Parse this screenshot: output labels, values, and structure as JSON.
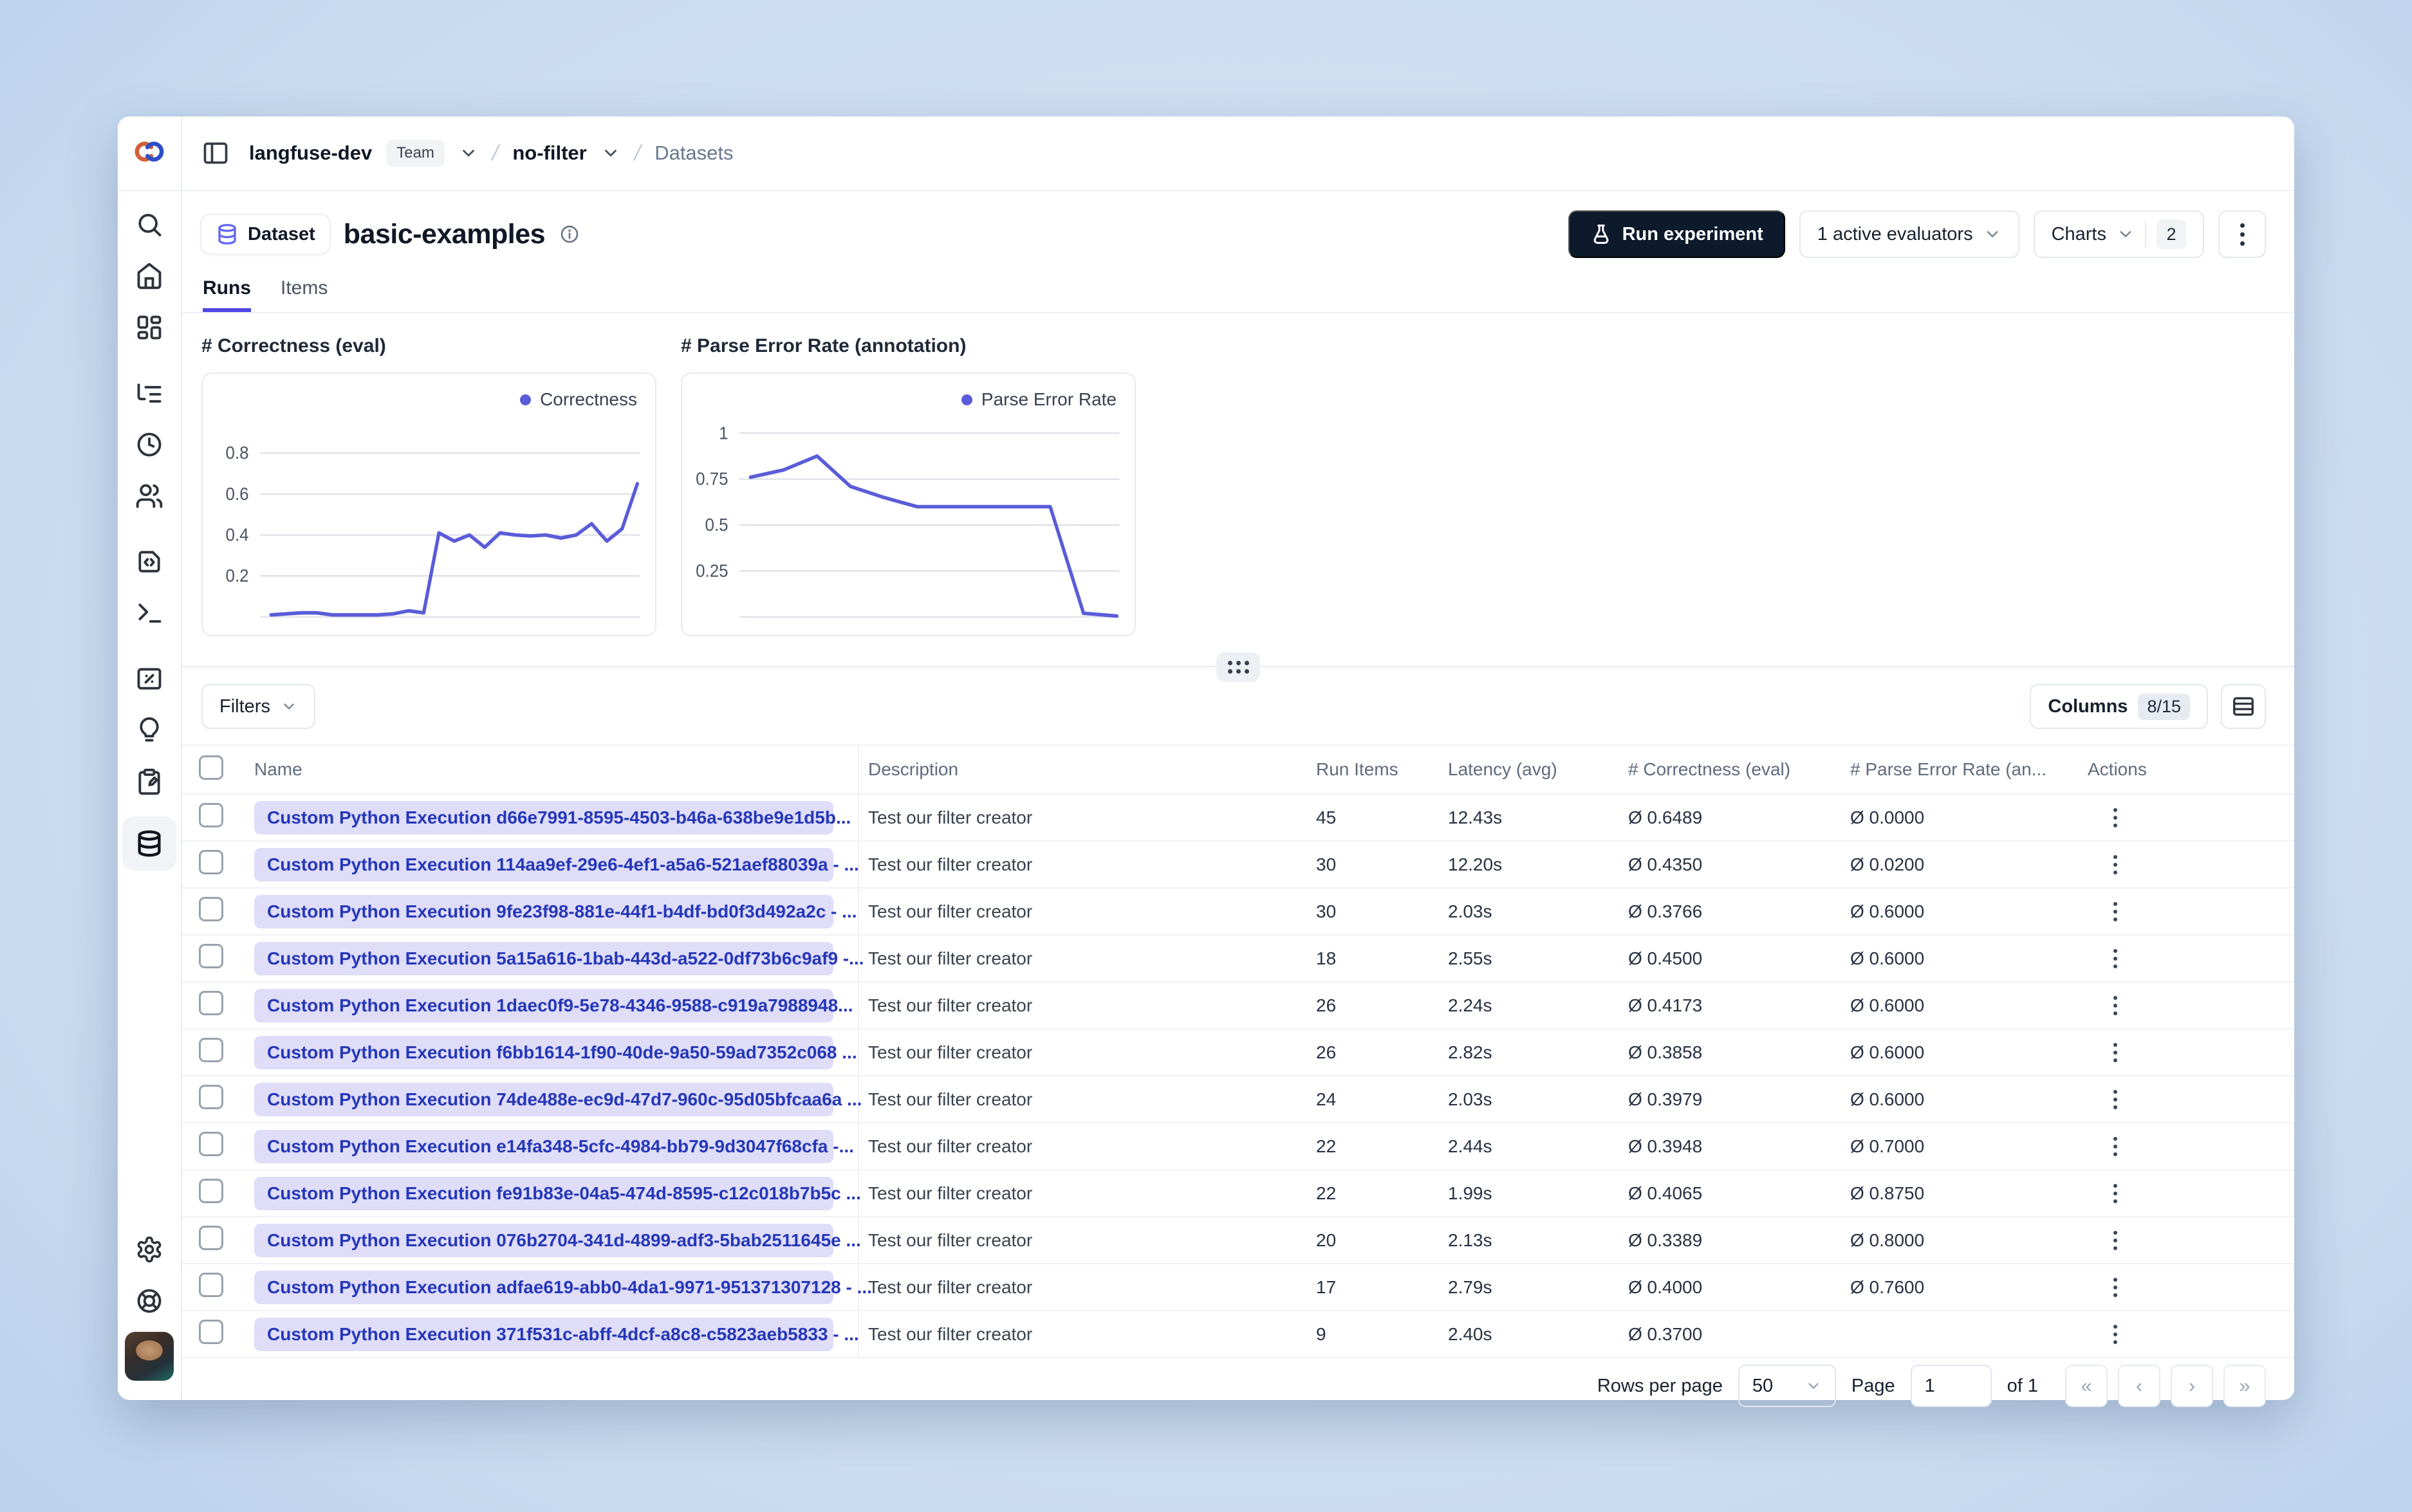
{
  "breadcrumb": {
    "org": "langfuse-dev",
    "org_badge": "Team",
    "separator": "/",
    "project": "no-filter",
    "section": "Datasets"
  },
  "header": {
    "entity_badge": "Dataset",
    "title": "basic-examples"
  },
  "toolbar": {
    "run_experiment": "Run experiment",
    "evaluators": "1 active evaluators",
    "charts": "Charts",
    "charts_count": "2"
  },
  "tabs": {
    "runs": "Runs",
    "items": "Items"
  },
  "chart_data": [
    {
      "type": "line",
      "title": "# Correctness (eval)",
      "series_name": "Correctness",
      "xlabel": "",
      "ylabel": "",
      "ylim": [
        0,
        0.96
      ],
      "yticks": [
        0.2,
        0.4,
        0.6,
        0.8
      ],
      "grid": true,
      "legend_position": "top-right",
      "line_color": "#5a5cd8",
      "values": [
        0.01,
        0.015,
        0.02,
        0.02,
        0.01,
        0.01,
        0.01,
        0.01,
        0.015,
        0.03,
        0.02,
        0.41,
        0.37,
        0.4,
        0.34,
        0.41,
        0.4,
        0.395,
        0.4,
        0.385,
        0.4,
        0.455,
        0.37,
        0.43,
        0.65
      ]
    },
    {
      "type": "line",
      "title": "# Parse Error Rate (annotation)",
      "series_name": "Parse Error Rate",
      "xlabel": "",
      "ylabel": "",
      "ylim": [
        0,
        1.07
      ],
      "yticks": [
        0.25,
        0.5,
        0.75,
        1
      ],
      "grid": true,
      "legend_position": "top-right",
      "line_color": "#5a5cd8",
      "values": [
        0.76,
        0.8,
        0.875,
        0.71,
        0.65,
        0.6,
        0.6,
        0.6,
        0.6,
        0.6,
        0.02,
        0.005
      ]
    }
  ],
  "filters": {
    "label": "Filters"
  },
  "columns_button": {
    "label": "Columns",
    "badge": "8/15"
  },
  "table": {
    "headers": [
      "Name",
      "Description",
      "Run Items",
      "Latency (avg)",
      "# Correctness (eval)",
      "# Parse Error Rate (an...",
      "Actions"
    ],
    "rows": [
      {
        "name": "Custom Python Execution d66e7991-8595-4503-b46a-638be9e1d5b...",
        "description": "Test our filter creator",
        "run_items": "45",
        "latency": "12.43s",
        "correctness": "Ø 0.6489",
        "parse_error_rate": "Ø 0.0000"
      },
      {
        "name": "Custom Python Execution 114aa9ef-29e6-4ef1-a5a6-521aef88039a - ...",
        "description": "Test our filter creator",
        "run_items": "30",
        "latency": "12.20s",
        "correctness": "Ø 0.4350",
        "parse_error_rate": "Ø 0.0200"
      },
      {
        "name": "Custom Python Execution 9fe23f98-881e-44f1-b4df-bd0f3d492a2c - ...",
        "description": "Test our filter creator",
        "run_items": "30",
        "latency": "2.03s",
        "correctness": "Ø 0.3766",
        "parse_error_rate": "Ø 0.6000"
      },
      {
        "name": "Custom Python Execution 5a15a616-1bab-443d-a522-0df73b6c9af9 -...",
        "description": "Test our filter creator",
        "run_items": "18",
        "latency": "2.55s",
        "correctness": "Ø 0.4500",
        "parse_error_rate": "Ø 0.6000"
      },
      {
        "name": "Custom Python Execution 1daec0f9-5e78-4346-9588-c919a7988948...",
        "description": "Test our filter creator",
        "run_items": "26",
        "latency": "2.24s",
        "correctness": "Ø 0.4173",
        "parse_error_rate": "Ø 0.6000"
      },
      {
        "name": "Custom Python Execution f6bb1614-1f90-40de-9a50-59ad7352c068 ...",
        "description": "Test our filter creator",
        "run_items": "26",
        "latency": "2.82s",
        "correctness": "Ø 0.3858",
        "parse_error_rate": "Ø 0.6000"
      },
      {
        "name": "Custom Python Execution 74de488e-ec9d-47d7-960c-95d05bfcaa6a ...",
        "description": "Test our filter creator",
        "run_items": "24",
        "latency": "2.03s",
        "correctness": "Ø 0.3979",
        "parse_error_rate": "Ø 0.6000"
      },
      {
        "name": "Custom Python Execution e14fa348-5cfc-4984-bb79-9d3047f68cfa -...",
        "description": "Test our filter creator",
        "run_items": "22",
        "latency": "2.44s",
        "correctness": "Ø 0.3948",
        "parse_error_rate": "Ø 0.7000"
      },
      {
        "name": "Custom Python Execution fe91b83e-04a5-474d-8595-c12c018b7b5c ...",
        "description": "Test our filter creator",
        "run_items": "22",
        "latency": "1.99s",
        "correctness": "Ø 0.4065",
        "parse_error_rate": "Ø 0.8750"
      },
      {
        "name": "Custom Python Execution 076b2704-341d-4899-adf3-5bab2511645e ...",
        "description": "Test our filter creator",
        "run_items": "20",
        "latency": "2.13s",
        "correctness": "Ø 0.3389",
        "parse_error_rate": "Ø 0.8000"
      },
      {
        "name": "Custom Python Execution adfae619-abb0-4da1-9971-951371307128 - ...",
        "description": "Test our filter creator",
        "run_items": "17",
        "latency": "2.79s",
        "correctness": "Ø 0.4000",
        "parse_error_rate": "Ø 0.7600"
      },
      {
        "name": "Custom Python Execution 371f531c-abff-4dcf-a8c8-c5823aeb5833 - ...",
        "description": "Test our filter creator",
        "run_items": "9",
        "latency": "2.40s",
        "correctness": "Ø 0.3700",
        "parse_error_rate": ""
      }
    ]
  },
  "pagination": {
    "rows_per_page_label": "Rows per page",
    "rows_per_page_value": "50",
    "page_label": "Page",
    "page_value": "1",
    "of_label": "of 1",
    "nav": [
      "«",
      "‹",
      "›",
      "»"
    ]
  },
  "colors": {
    "accent": "#4f46e5",
    "chart_line": "#5a5cd8",
    "dark_button": "#0c1a2c",
    "name_pill_bg": "#dfddf8",
    "name_pill_text": "#2537b8"
  }
}
